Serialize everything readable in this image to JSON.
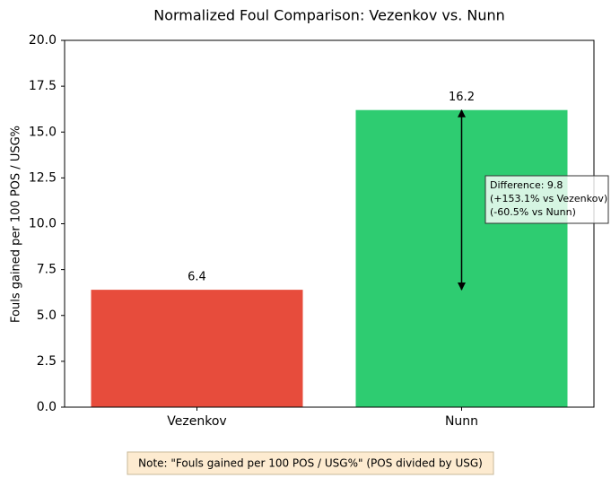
{
  "chart_data": {
    "type": "bar",
    "title": "Normalized Foul Comparison: Vezenkov vs. Nunn",
    "y_label": "Fouls gained per 100 POS / USG%",
    "categories": [
      "Vezenkov",
      "Nunn"
    ],
    "values": [
      6.4,
      16.2
    ],
    "colors": [
      "#e74c3c",
      "#2ecc71"
    ],
    "ylim": [
      0,
      20
    ],
    "yticks": [
      {
        "value": 0,
        "label": "0.0"
      },
      2.5,
      {
        "value": 5,
        "label": "5.0"
      },
      7.5,
      {
        "value": 10,
        "label": "10.0"
      },
      12.5,
      {
        "value": 15,
        "label": "15.0"
      },
      17.5,
      {
        "value": 20,
        "label": "20.0"
      }
    ],
    "grid": false,
    "annotation": [
      "Difference: 9.8",
      "(+153.1% vs Vezenkov)",
      "(-60.5% vs Nunn)"
    ],
    "note": "Note: \"Fouls gained per 100 POS / USG%\" (POS divided by USG)"
  }
}
